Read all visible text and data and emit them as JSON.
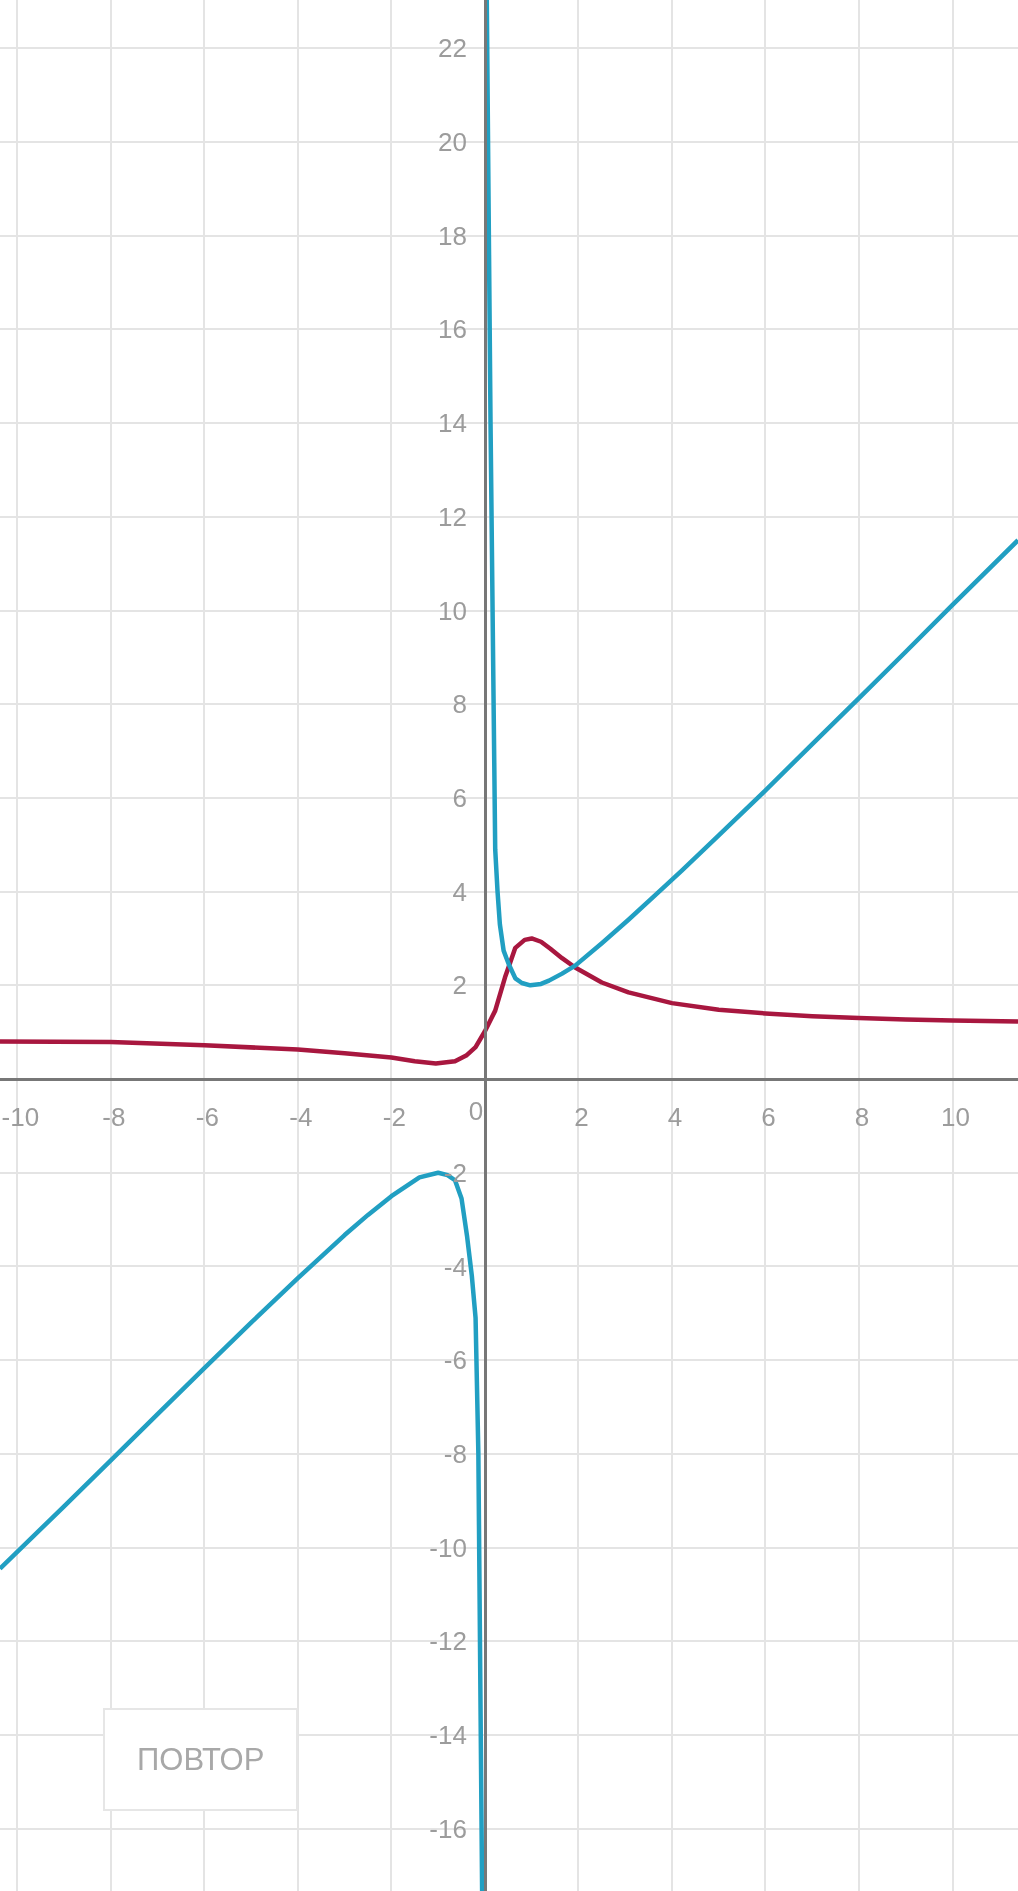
{
  "chart_data": {
    "type": "line",
    "xlim": [
      -10.37,
      11.4
    ],
    "ylim": [
      -17.33,
      23.03
    ],
    "xticks": [
      -10,
      -8,
      -6,
      -4,
      -2,
      0,
      2,
      4,
      6,
      8,
      10
    ],
    "yticks": [
      -16,
      -14,
      -12,
      -10,
      -8,
      -6,
      -4,
      -2,
      2,
      4,
      6,
      8,
      10,
      12,
      14,
      16,
      18,
      20,
      22
    ],
    "grid": true,
    "marker": "none",
    "line_style": "solid",
    "series": [
      {
        "color": "#a8173f",
        "x": [
          -10.37,
          -8,
          -6,
          -4,
          -3,
          -2,
          -1.5,
          -1.05,
          -0.64,
          -0.4,
          -0.2,
          0,
          0.22,
          0.43,
          0.65,
          0.85,
          1.0,
          1.2,
          1.4,
          1.65,
          1.93,
          2.5,
          3.07,
          4,
          5,
          6,
          7,
          8,
          9,
          10,
          11.4
        ],
        "values": [
          0.8,
          0.79,
          0.72,
          0.63,
          0.55,
          0.46,
          0.38,
          0.33,
          0.38,
          0.5,
          0.68,
          1.02,
          1.46,
          2.17,
          2.8,
          2.97,
          3.0,
          2.93,
          2.78,
          2.58,
          2.38,
          2.06,
          1.85,
          1.62,
          1.48,
          1.4,
          1.34,
          1.3,
          1.27,
          1.25,
          1.23
        ]
      },
      {
        "color": "#219fc2",
        "x": [
          -10.37,
          -9,
          -8,
          -7,
          -6,
          -5,
          -4,
          -3,
          -2.5,
          -2,
          -1.4,
          -1.0,
          -0.8,
          -0.64,
          -0.5,
          -0.38,
          -0.28,
          -0.2,
          -0.14,
          -0.06
        ],
        "values": [
          -10.45,
          -9.12,
          -8.14,
          -7.15,
          -6.17,
          -5.2,
          -4.25,
          -3.33,
          -2.9,
          -2.5,
          -2.1,
          -2.0,
          -2.05,
          -2.16,
          -2.55,
          -3.37,
          -4.2,
          -5.1,
          -8.0,
          -17.33
        ]
      },
      {
        "color": "#219fc2",
        "x": [
          0.04,
          0.12,
          0.22,
          0.27,
          0.32,
          0.4,
          0.51,
          0.65,
          0.79,
          0.97,
          1.2,
          1.37,
          1.65,
          1.93,
          2.5,
          3.07,
          3.66,
          4.21,
          5,
          6,
          7,
          8,
          9,
          10,
          11.4
        ],
        "values": [
          23.03,
          14.0,
          4.9,
          4.0,
          3.3,
          2.74,
          2.45,
          2.15,
          2.05,
          2.0,
          2.03,
          2.1,
          2.25,
          2.42,
          2.9,
          3.4,
          3.94,
          4.45,
          5.2,
          6.16,
          7.15,
          8.13,
          9.12,
          10.12,
          11.5
        ]
      }
    ],
    "annotations": [
      "ПОВТОР"
    ]
  }
}
